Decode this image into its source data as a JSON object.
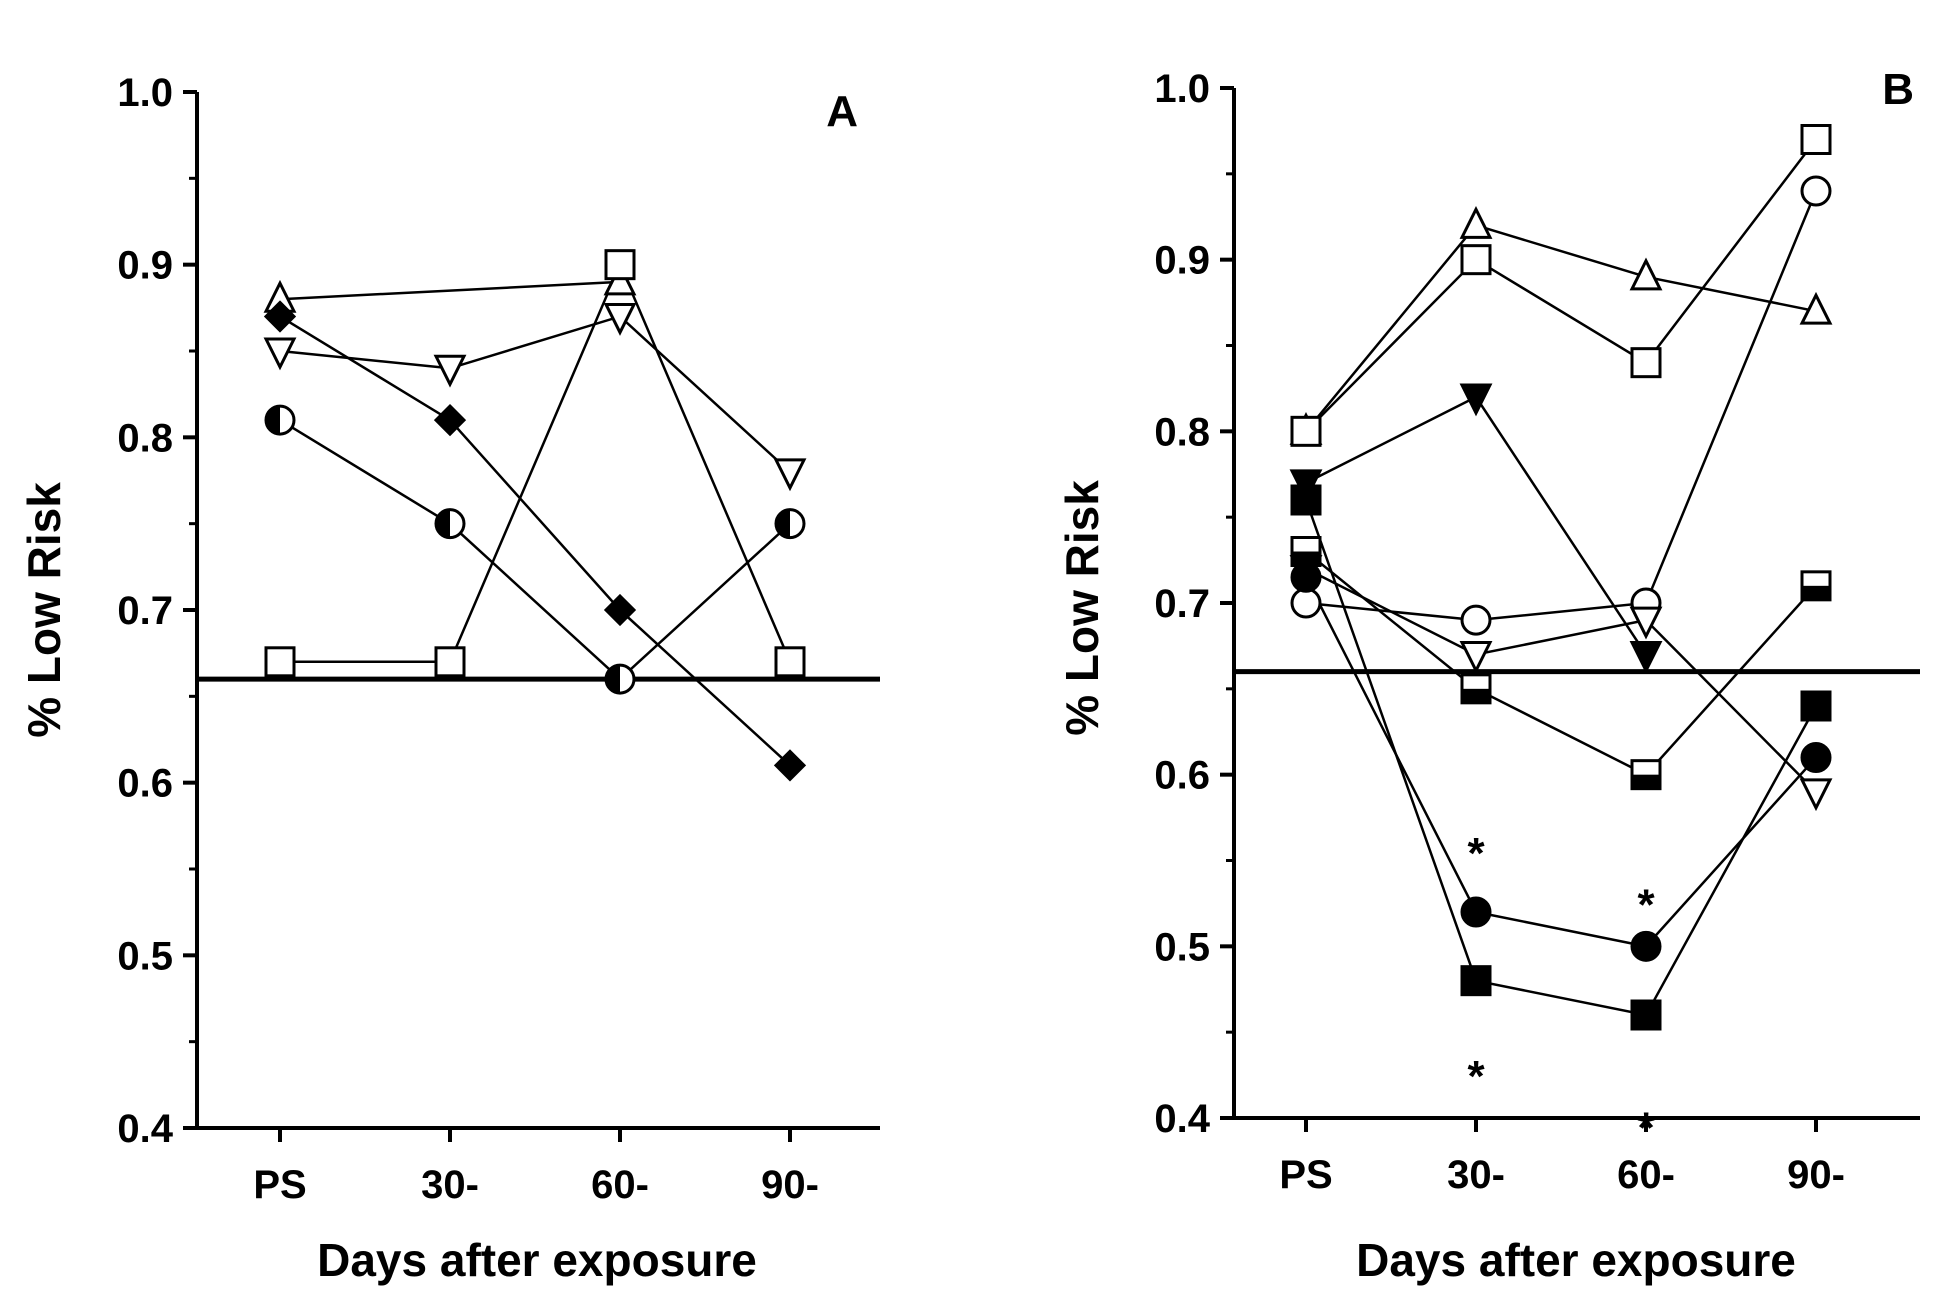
{
  "chart_data": [
    {
      "panel": "A",
      "type": "line",
      "xlabel": "Days after exposure",
      "ylabel": "% Low  Risk",
      "categories": [
        "PS",
        "30-",
        "60-",
        "90-"
      ],
      "ylim": [
        0.4,
        1.0
      ],
      "yticks": [
        "0.4",
        "0.5",
        "0.6",
        "0.7",
        "0.8",
        "0.9",
        "1.0"
      ],
      "reference_line": 0.66,
      "series": [
        {
          "name": "open-triangle-up",
          "marker": "triangle-up-open",
          "values": [
            0.88,
            null,
            0.89,
            null
          ]
        },
        {
          "name": "filled-diamond",
          "marker": "diamond-filled",
          "values": [
            0.87,
            0.81,
            0.7,
            0.61
          ]
        },
        {
          "name": "open-triangle-down",
          "marker": "triangle-down-open",
          "values": [
            0.85,
            0.84,
            0.87,
            0.78
          ]
        },
        {
          "name": "half-filled-circle",
          "marker": "circle-half",
          "values": [
            0.81,
            0.75,
            0.66,
            0.75
          ]
        },
        {
          "name": "open-square",
          "marker": "square-open",
          "values": [
            0.67,
            0.67,
            0.9,
            0.67
          ]
        }
      ],
      "annotations": []
    },
    {
      "panel": "B",
      "type": "line",
      "xlabel": "Days after exposure",
      "ylabel": "% Low  Risk",
      "categories": [
        "PS",
        "30-",
        "60-",
        "90-"
      ],
      "ylim": [
        0.4,
        1.0
      ],
      "yticks": [
        "0.4",
        "0.5",
        "0.6",
        "0.7",
        "0.8",
        "0.9",
        "1.0"
      ],
      "reference_line": 0.66,
      "series": [
        {
          "name": "open-triangle-up",
          "marker": "triangle-up-open",
          "values": [
            0.8,
            0.92,
            0.89,
            0.87
          ]
        },
        {
          "name": "open-square",
          "marker": "square-open",
          "values": [
            0.8,
            0.9,
            0.84,
            0.97
          ]
        },
        {
          "name": "open-circle",
          "marker": "circle-open",
          "values": [
            0.7,
            0.69,
            0.7,
            0.94
          ]
        },
        {
          "name": "filled-triangle-down",
          "marker": "triangle-down-filled",
          "values": [
            0.77,
            0.82,
            0.67,
            null
          ]
        },
        {
          "name": "open-triangle-down",
          "marker": "triangle-down-open",
          "values": [
            0.72,
            0.67,
            0.69,
            0.59
          ]
        },
        {
          "name": "half-filled-square",
          "marker": "square-half",
          "values": [
            0.73,
            0.65,
            0.6,
            0.71
          ]
        },
        {
          "name": "filled-circle",
          "marker": "circle-filled",
          "values": [
            0.715,
            0.52,
            0.5,
            0.61
          ]
        },
        {
          "name": "filled-square",
          "marker": "square-filled",
          "values": [
            0.76,
            0.48,
            0.46,
            0.64
          ]
        }
      ],
      "annotations": [
        {
          "text": "*",
          "category": "30-",
          "value": 0.555
        },
        {
          "text": "*",
          "category": "60-",
          "value": 0.525
        },
        {
          "text": "*",
          "category": "30-",
          "value": 0.425
        },
        {
          "text": "*",
          "category": "60-",
          "value": 0.395
        }
      ]
    }
  ]
}
